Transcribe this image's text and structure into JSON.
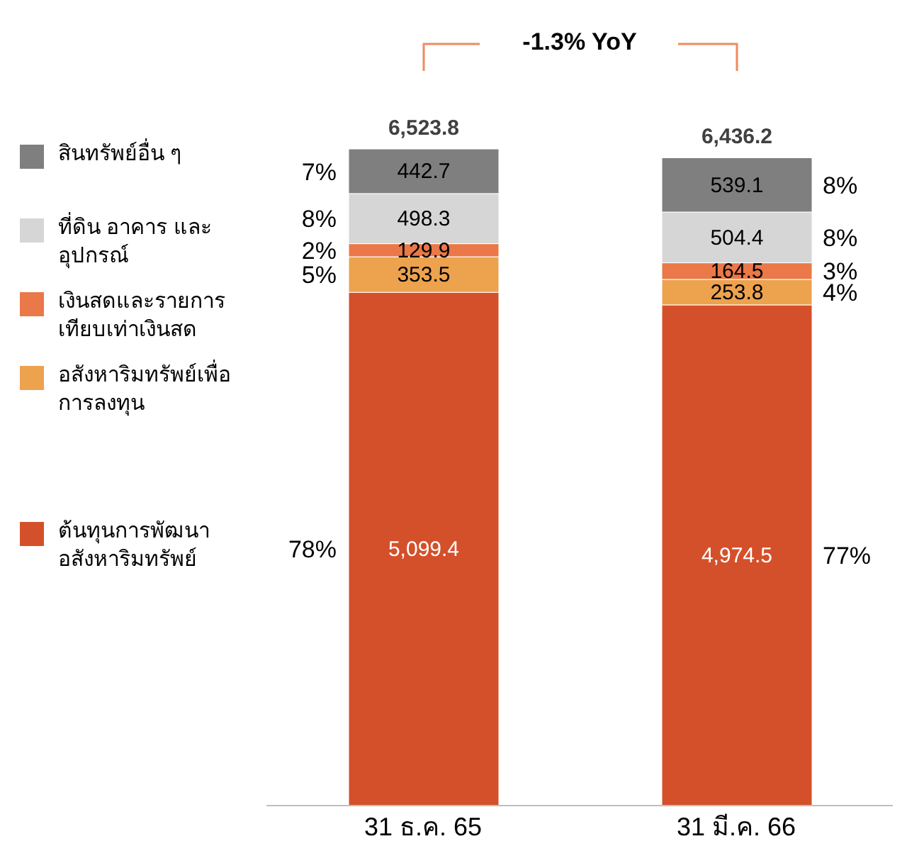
{
  "chart_data": {
    "type": "bar",
    "stacked": true,
    "categories": [
      "31 ธ.ค. 65",
      "31 มี.ค. 66"
    ],
    "series": [
      {
        "name": "ต้นทุนการพัฒนาอสังหาริมทรัพย์",
        "color": "#d4502a",
        "values": [
          5099.4,
          4974.5
        ],
        "value_labels": [
          "5,099.4",
          "4,974.5"
        ]
      },
      {
        "name": "อสังหาริมทรัพย์เพื่อการลงทุน",
        "color": "#eda24e",
        "values": [
          353.5,
          253.8
        ],
        "value_labels": [
          "353.5",
          "253.8"
        ]
      },
      {
        "name": "เงินสดและรายการเทียบเท่าเงินสด",
        "color": "#ea7848",
        "values": [
          129.9,
          164.5
        ],
        "value_labels": [
          "129.9",
          "164.5"
        ]
      },
      {
        "name": "ที่ดิน อาคาร และอุปกรณ์",
        "color": "#d6d6d6",
        "values": [
          498.3,
          504.4
        ],
        "value_labels": [
          "498.3",
          "504.4"
        ]
      },
      {
        "name": "สินทรัพย์อื่น ๆ",
        "color": "#7f7f7f",
        "values": [
          442.7,
          539.1
        ],
        "value_labels": [
          "442.7",
          "539.1"
        ]
      }
    ],
    "totals": [
      "6,523.8",
      "6,436.2"
    ],
    "legend": "left",
    "annotations": [
      "-1.3% YoY",
      "78%",
      "5%",
      "2%",
      "8%",
      "7%",
      "77%",
      "4%",
      "3%",
      "8%",
      "8%"
    ]
  }
}
